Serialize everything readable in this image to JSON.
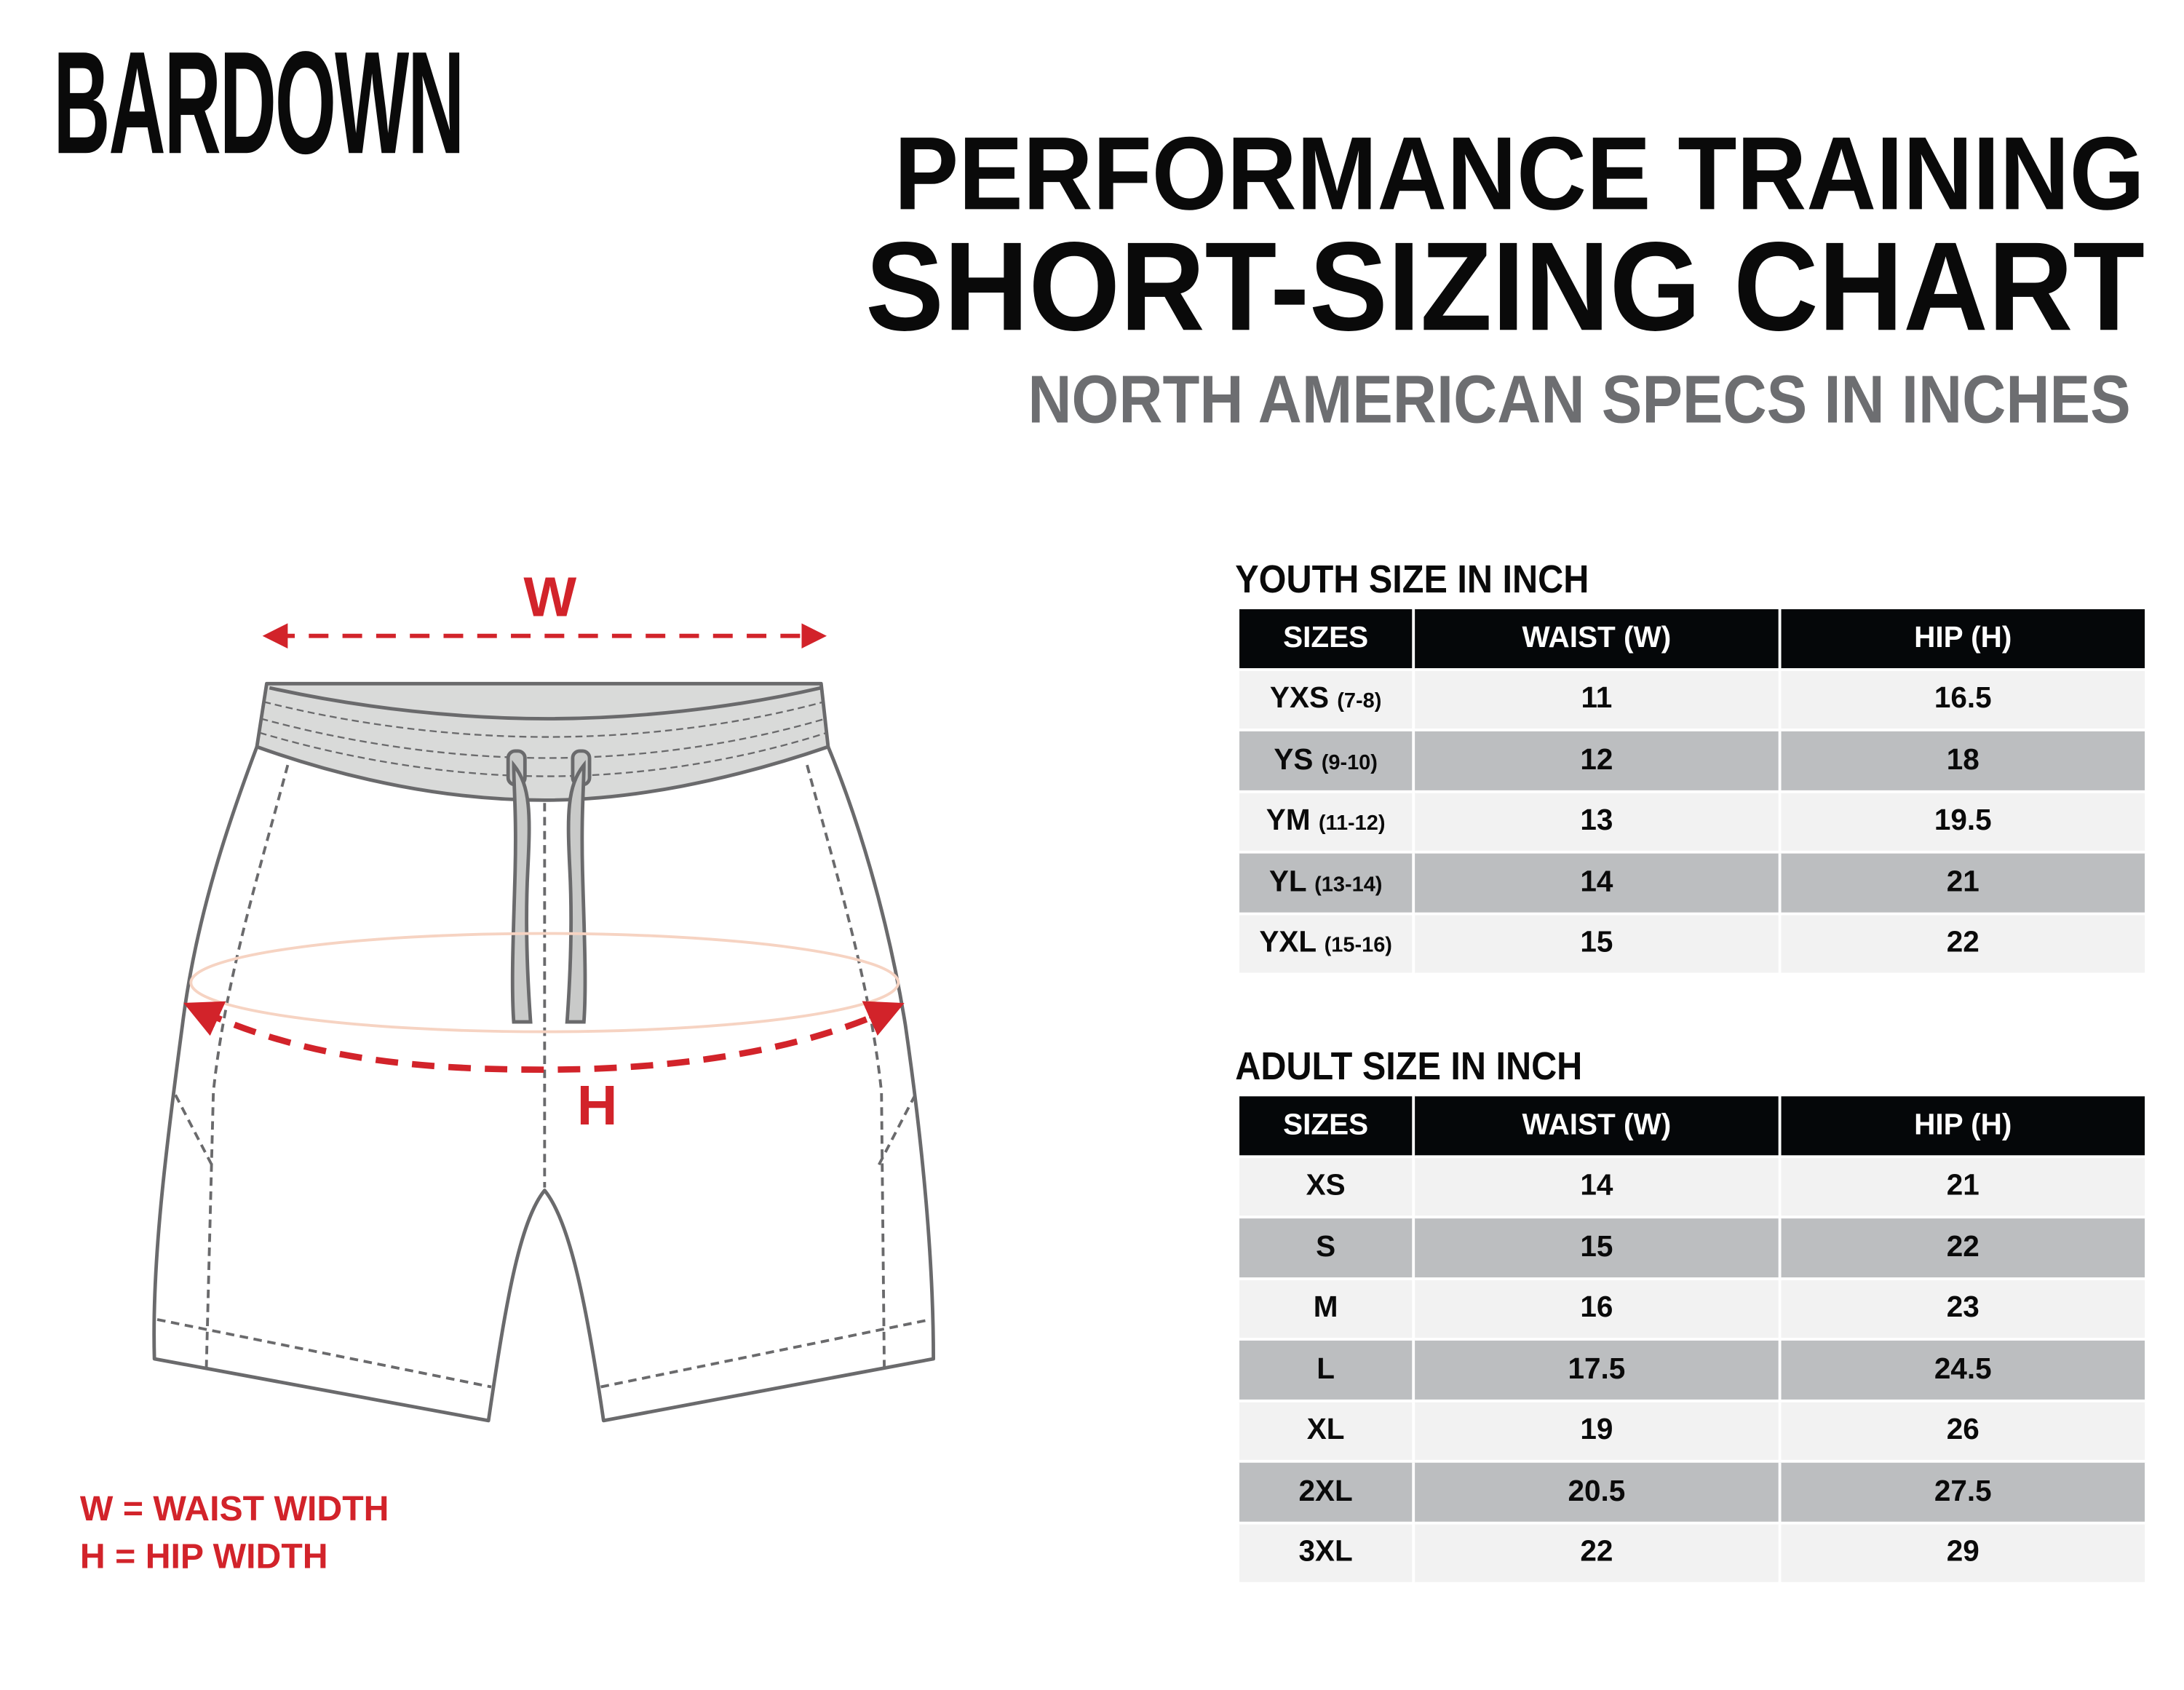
{
  "brand": {
    "logo_text": "BARDOWN"
  },
  "header": {
    "line1": "PERFORMANCE TRAINING",
    "line2": "SHORT-SIZING CHART",
    "line3": "NORTH AMERICAN SPECS IN INCHES"
  },
  "diagram": {
    "waist_label": "W",
    "hip_label": "H",
    "accent_color": "#d2232a"
  },
  "legend": {
    "waist": "W = WAIST WIDTH",
    "hip": "H = HIP WIDTH"
  },
  "youth": {
    "title": "YOUTH SIZE IN INCH",
    "headers": [
      "SIZES",
      "WAIST (W)",
      "HIP (H)"
    ],
    "rows": [
      {
        "size": "YXS",
        "age": "(7-8)",
        "waist": "11",
        "hip": "16.5"
      },
      {
        "size": "YS",
        "age": "(9-10)",
        "waist": "12",
        "hip": "18"
      },
      {
        "size": "YM",
        "age": "(11-12)",
        "waist": "13",
        "hip": "19.5"
      },
      {
        "size": "YL",
        "age": "(13-14)",
        "waist": "14",
        "hip": "21"
      },
      {
        "size": "YXL",
        "age": "(15-16)",
        "waist": "15",
        "hip": "22"
      }
    ]
  },
  "adult": {
    "title": "ADULT SIZE IN INCH",
    "headers": [
      "SIZES",
      "WAIST (W)",
      "HIP (H)"
    ],
    "rows": [
      {
        "size": "XS",
        "waist": "14",
        "hip": "21"
      },
      {
        "size": "S",
        "waist": "15",
        "hip": "22"
      },
      {
        "size": "M",
        "waist": "16",
        "hip": "23"
      },
      {
        "size": "L",
        "waist": "17.5",
        "hip": "24.5"
      },
      {
        "size": "XL",
        "waist": "19",
        "hip": "26"
      },
      {
        "size": "2XL",
        "waist": "20.5",
        "hip": "27.5"
      },
      {
        "size": "3XL",
        "waist": "22",
        "hip": "29"
      }
    ]
  }
}
